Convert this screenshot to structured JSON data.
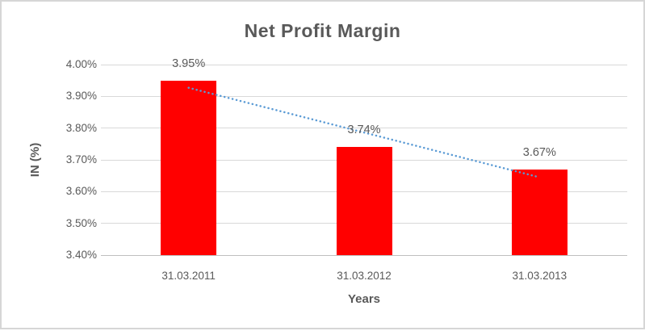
{
  "window": {
    "background": "#ffffff",
    "border_color": "#d6d6d6"
  },
  "chart_data": {
    "type": "bar",
    "title": "Net Profit Margin",
    "xlabel": "Years",
    "ylabel": "IN (%)",
    "categories": [
      "31.03.2011",
      "31.03.2012",
      "31.03.2013"
    ],
    "values": [
      3.95,
      3.74,
      3.67
    ],
    "data_labels": [
      "3.95%",
      "3.74%",
      "3.67%"
    ],
    "y_ticks": [
      "4.00%",
      "3.90%",
      "3.80%",
      "3.70%",
      "3.60%",
      "3.50%",
      "3.40%"
    ],
    "y_tick_values": [
      4.0,
      3.9,
      3.8,
      3.7,
      3.6,
      3.5,
      3.4
    ],
    "ylim": [
      3.4,
      4.0
    ],
    "grid": true,
    "legend": "none",
    "bar_color": "#ff0000",
    "text_color": "#595959",
    "gridline_color": "#d9d9d9",
    "axis_line_color": "#bfbfbf",
    "trendline": {
      "type": "linear",
      "style": "dotted",
      "color": "#5b9bd5",
      "start_value": 3.927,
      "end_value": 3.647
    }
  }
}
